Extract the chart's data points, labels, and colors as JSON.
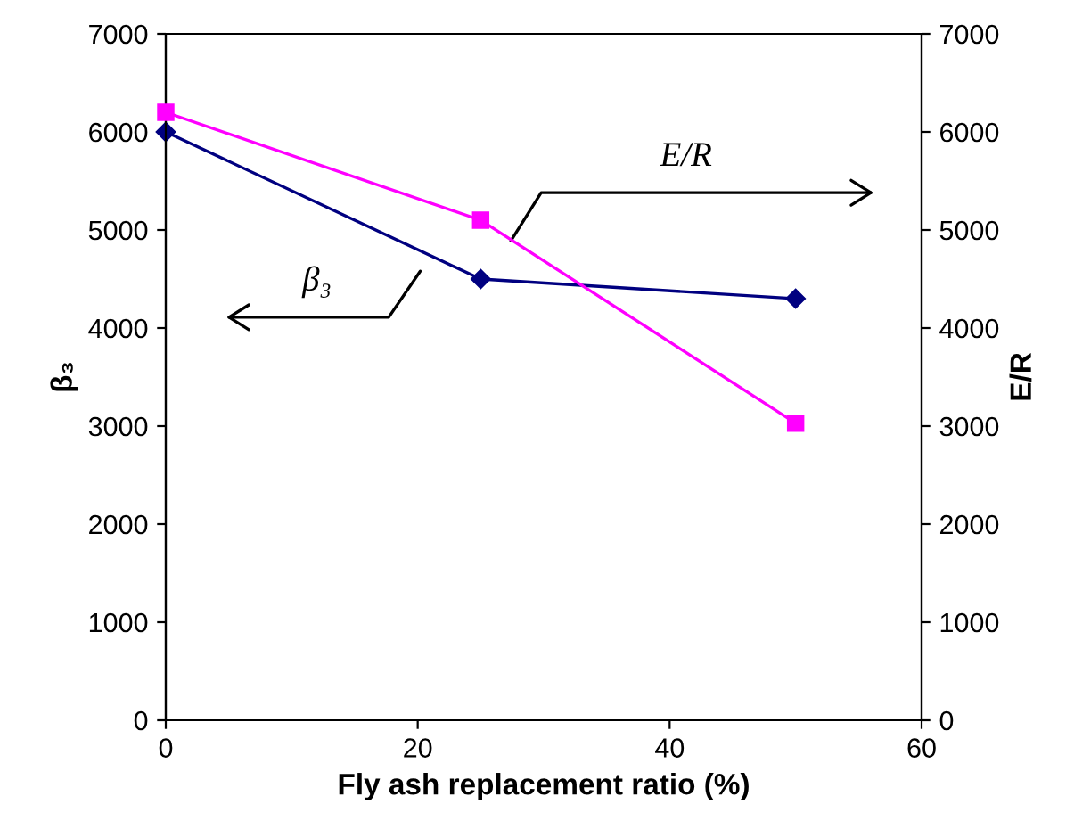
{
  "chart_data": {
    "type": "line",
    "xlabel": "Fly ash replacement ratio (%)",
    "ylabel": "β₃",
    "y2label": "E/R",
    "x": [
      0,
      25,
      50
    ],
    "series": [
      {
        "name": "β₃",
        "color": "#000080",
        "marker": "diamond",
        "values": [
          6000,
          4500,
          4300
        ]
      },
      {
        "name": "E/R",
        "color": "#ff00ff",
        "marker": "square",
        "axis": "y2",
        "values": [
          6200,
          5100,
          3030
        ]
      }
    ],
    "xlim": [
      0,
      60
    ],
    "xticks": [
      0,
      20,
      40,
      60
    ],
    "ylim": [
      0,
      7000
    ],
    "yticks": [
      0,
      1000,
      2000,
      3000,
      4000,
      5000,
      6000,
      7000
    ],
    "y2lim": [
      0,
      7000
    ],
    "y2ticks": [
      0,
      1000,
      2000,
      3000,
      4000,
      5000,
      6000,
      7000
    ],
    "grid": false,
    "legend": false,
    "line_style": "solid"
  }
}
